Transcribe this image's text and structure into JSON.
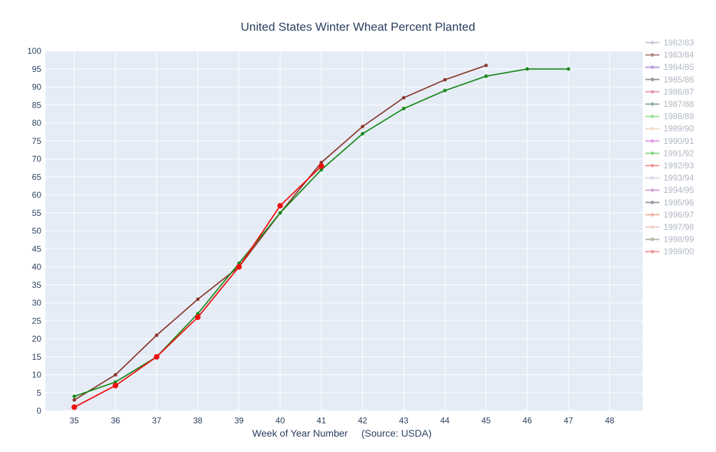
{
  "chart_data": {
    "type": "line",
    "title": "United States Winter Wheat Percent Planted",
    "xlabel": "Week of Year Number     (Source: USDA)",
    "ylabel": "",
    "x_ticks": [
      35,
      36,
      37,
      38,
      39,
      40,
      41,
      42,
      43,
      44,
      45,
      46,
      47,
      48
    ],
    "y_ticks": [
      0,
      5,
      10,
      15,
      20,
      25,
      30,
      35,
      40,
      45,
      50,
      55,
      60,
      65,
      70,
      75,
      80,
      85,
      90,
      95,
      100
    ],
    "xlim": [
      34.3,
      48.8
    ],
    "ylim": [
      0,
      100
    ],
    "grid": true,
    "legend_position": "right",
    "legend": [
      {
        "name": "1982/83",
        "color": "#c9c9de"
      },
      {
        "name": "1983/84",
        "color": "#b08a80"
      },
      {
        "name": "1984/85",
        "color": "#b8a2d8"
      },
      {
        "name": "1985/86",
        "color": "#9a9aa3"
      },
      {
        "name": "1986/87",
        "color": "#e89ab5"
      },
      {
        "name": "1987/88",
        "color": "#8fb39b"
      },
      {
        "name": "1988/89",
        "color": "#9be09b"
      },
      {
        "name": "1989/90",
        "color": "#f2dcc6"
      },
      {
        "name": "1990/91",
        "color": "#e3a0e8"
      },
      {
        "name": "1991/92",
        "color": "#8fd98f"
      },
      {
        "name": "1992/93",
        "color": "#f09a9a"
      },
      {
        "name": "1993/94",
        "color": "#dcdce8"
      },
      {
        "name": "1994/95",
        "color": "#d6a8d6"
      },
      {
        "name": "1995/96",
        "color": "#9a9ea6"
      },
      {
        "name": "1996/97",
        "color": "#f0b6a8"
      },
      {
        "name": "1997/98",
        "color": "#ecd2c8"
      },
      {
        "name": "1998/99",
        "color": "#b8b8a0"
      },
      {
        "name": "1999/00",
        "color": "#f09a9a"
      }
    ],
    "series": [
      {
        "color": "#8b3a2e",
        "marker_size": 2.5,
        "x": [
          35,
          36,
          37,
          38,
          39,
          40,
          41,
          42,
          43,
          44,
          45
        ],
        "y": [
          3,
          10,
          21,
          31,
          40,
          55,
          69,
          79,
          87,
          92,
          96
        ]
      },
      {
        "color": "#1a8a1a",
        "marker_size": 2.5,
        "x": [
          35,
          36,
          37,
          38,
          39,
          40,
          41,
          42,
          43,
          44,
          45,
          46,
          47
        ],
        "y": [
          4,
          8,
          15,
          27,
          41,
          55,
          67,
          77,
          84,
          89,
          93,
          95,
          95
        ]
      },
      {
        "color": "#ee1111",
        "marker_size": 4,
        "x": [
          35,
          36,
          37,
          38,
          39,
          40,
          41
        ],
        "y": [
          1,
          7,
          15,
          26,
          40,
          57,
          68
        ]
      }
    ]
  }
}
